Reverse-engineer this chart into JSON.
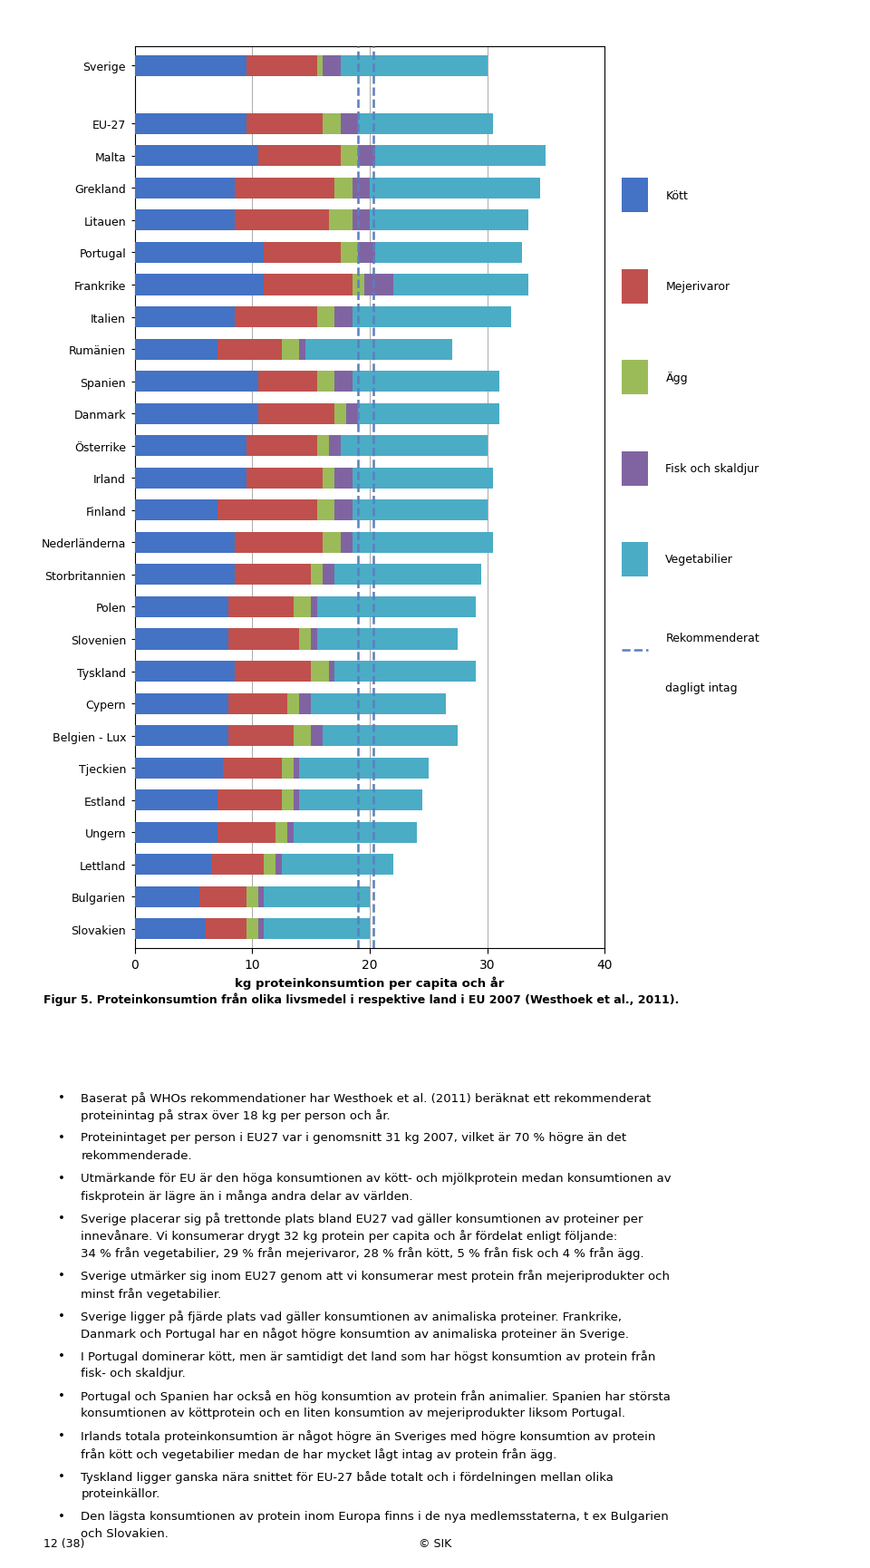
{
  "countries": [
    "Sverige",
    "EU-27",
    "Malta",
    "Grekland",
    "Litauen",
    "Portugal",
    "Frankrike",
    "Italien",
    "Rumänien",
    "Spanien",
    "Danmark",
    "Österrike",
    "Irland",
    "Finland",
    "Nederländerna",
    "Storbritannien",
    "Polen",
    "Slovenien",
    "Tyskland",
    "Cypern",
    "Belgien - Lux",
    "Tjeckien",
    "Estland",
    "Ungern",
    "Lettland",
    "Bulgarien",
    "Slovakien"
  ],
  "kott": [
    9.5,
    9.5,
    10.5,
    8.5,
    8.5,
    11.0,
    11.0,
    8.5,
    7.0,
    10.5,
    10.5,
    9.5,
    9.5,
    7.0,
    8.5,
    8.5,
    8.0,
    8.0,
    8.5,
    8.0,
    8.0,
    7.5,
    7.0,
    7.0,
    6.5,
    5.5,
    6.0
  ],
  "mejerivaror": [
    6.0,
    6.5,
    7.0,
    8.5,
    8.0,
    6.5,
    7.5,
    7.0,
    5.5,
    5.0,
    6.5,
    6.0,
    6.5,
    8.5,
    7.5,
    6.5,
    5.5,
    6.0,
    6.5,
    5.0,
    5.5,
    5.0,
    5.5,
    5.0,
    4.5,
    4.0,
    3.5
  ],
  "agg": [
    0.5,
    1.5,
    1.5,
    1.5,
    2.0,
    1.5,
    1.0,
    1.5,
    1.5,
    1.5,
    1.0,
    1.0,
    1.0,
    1.5,
    1.5,
    1.0,
    1.5,
    1.0,
    1.5,
    1.0,
    1.5,
    1.0,
    1.0,
    1.0,
    1.0,
    1.0,
    1.0
  ],
  "fisk": [
    1.5,
    1.5,
    1.5,
    1.5,
    1.5,
    1.5,
    2.5,
    1.5,
    0.5,
    1.5,
    1.0,
    1.0,
    1.5,
    1.5,
    1.0,
    1.0,
    0.5,
    0.5,
    0.5,
    1.0,
    1.0,
    0.5,
    0.5,
    0.5,
    0.5,
    0.5,
    0.5
  ],
  "vegetabilier": [
    12.5,
    11.5,
    14.5,
    14.5,
    13.5,
    12.5,
    11.5,
    13.5,
    12.5,
    12.5,
    12.0,
    12.5,
    12.0,
    11.5,
    12.0,
    12.5,
    13.5,
    12.0,
    12.0,
    11.5,
    11.5,
    11.0,
    10.5,
    10.5,
    9.5,
    9.0,
    9.0
  ],
  "rekomm_lo": 19.0,
  "rekomm_hi": 20.3,
  "color_kott": "#4472C4",
  "color_mejeri": "#C0504D",
  "color_agg": "#9BBB59",
  "color_fisk": "#8064A2",
  "color_veg": "#4BACC6",
  "color_dashed": "#5B7FBF",
  "xlabel": "kg proteinkonsumtion per capita och år",
  "xlim": [
    0,
    40
  ],
  "xticks": [
    0,
    10,
    20,
    30,
    40
  ],
  "legend_labels": [
    "Kött",
    "Mejerivaror",
    "Ägg",
    "Fisk och skaldjur",
    "Vegetabilier",
    "Rekommenderat\ndagligt intag"
  ],
  "fig_caption": "Figur 5. Proteinkonsumtion från olika livsmedel i respektive land i EU 2007 (Westhoek et al., 2011).",
  "bullet_points": [
    "Baserat på WHOs rekommendationer har Westhoek et al. (2011) beräknat ett rekommenderat proteinintag på strax över 18 kg per person och år.",
    "Proteinintaget per person i EU27 var i genomsnitt 31 kg 2007, vilket är 70 % högre än det rekommenderade.",
    "Utmärkande för EU är den höga konsumtionen av kött- och mjölkprotein medan konsumtionen av fiskprotein är lägre än i många andra delar av världen.",
    "Sverige placerar sig på trettonde plats bland EU27 vad gäller konsumtionen av proteiner per innevånare. Vi konsumerar drygt 32 kg protein per capita och år fördelat enligt följande:\n34 % från vegetabilier, 29 % från mejerivaror, 28 % från kött, 5 % från fisk och 4 % från ägg.",
    "Sverige utmärker sig inom EU27 genom att vi konsumerar mest protein från mejeriprodukter och minst från vegetabilier.",
    "Sverige ligger på fjärde plats vad gäller konsumtionen av animaliska proteiner. Frankrike, Danmark och Portugal har en något högre konsumtion av animaliska proteiner än Sverige.",
    "I Portugal dominerar kött, men är samtidigt det land som har högst konsumtion av protein från fisk- och skaldjur.",
    "Portugal och Spanien har också en hög konsumtion av protein från animalier. Spanien har största konsumtionen av köttprotein och en liten konsumtion av mejeriprodukter liksom Portugal.",
    "Irlands totala proteinkonsumtion är något högre än Sveriges med högre konsumtion av protein från kött och vegetabilier medan de har mycket lågt intag av protein från ägg.",
    "Tyskland ligger ganska nära snittet för EU-27 både totalt och i fördelningen mellan olika proteinkällor.",
    "Den lägsta konsumtionen av protein inom Europa finns i de nya medlemsstaterna, t ex Bulgarien och Slovakien."
  ],
  "footer_left": "12 (38)",
  "footer_center": "© SIK"
}
